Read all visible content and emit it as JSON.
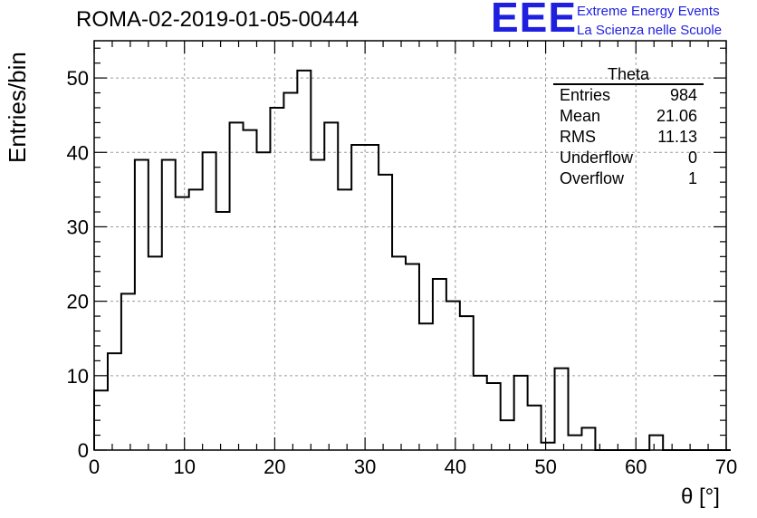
{
  "header": {
    "title": "ROMA-02-2019-01-05-00444",
    "logo": "EEE",
    "logo_line1": "Extreme Energy Events",
    "logo_line2": "La Scienza nelle Scuole",
    "logo_color": "#1f1fe0"
  },
  "stats": {
    "name": "Theta",
    "rows": [
      {
        "label": "Entries",
        "value": "984"
      },
      {
        "label": "Mean",
        "value": "21.06"
      },
      {
        "label": "RMS",
        "value": "11.13"
      },
      {
        "label": "Underflow",
        "value": "0"
      },
      {
        "label": "Overflow",
        "value": "1"
      }
    ]
  },
  "chart_data": {
    "type": "histogram",
    "xlabel": "θ [°]",
    "ylabel": "Entries/bin",
    "xlim": [
      0,
      70
    ],
    "ylim": [
      0,
      55
    ],
    "xticks": [
      0,
      10,
      20,
      30,
      40,
      50,
      60,
      70
    ],
    "yticks": [
      0,
      10,
      20,
      30,
      40,
      50
    ],
    "grid": true,
    "bin_width": 1.5,
    "bin_edges_start": 0,
    "values": [
      8,
      13,
      21,
      39,
      26,
      39,
      34,
      35,
      40,
      32,
      44,
      43,
      40,
      46,
      48,
      51,
      39,
      44,
      35,
      41,
      41,
      37,
      26,
      25,
      17,
      23,
      20,
      18,
      10,
      9,
      4,
      10,
      6,
      1,
      11,
      2,
      3,
      0,
      0,
      0,
      0,
      2,
      0,
      0,
      0,
      0,
      0
    ]
  }
}
